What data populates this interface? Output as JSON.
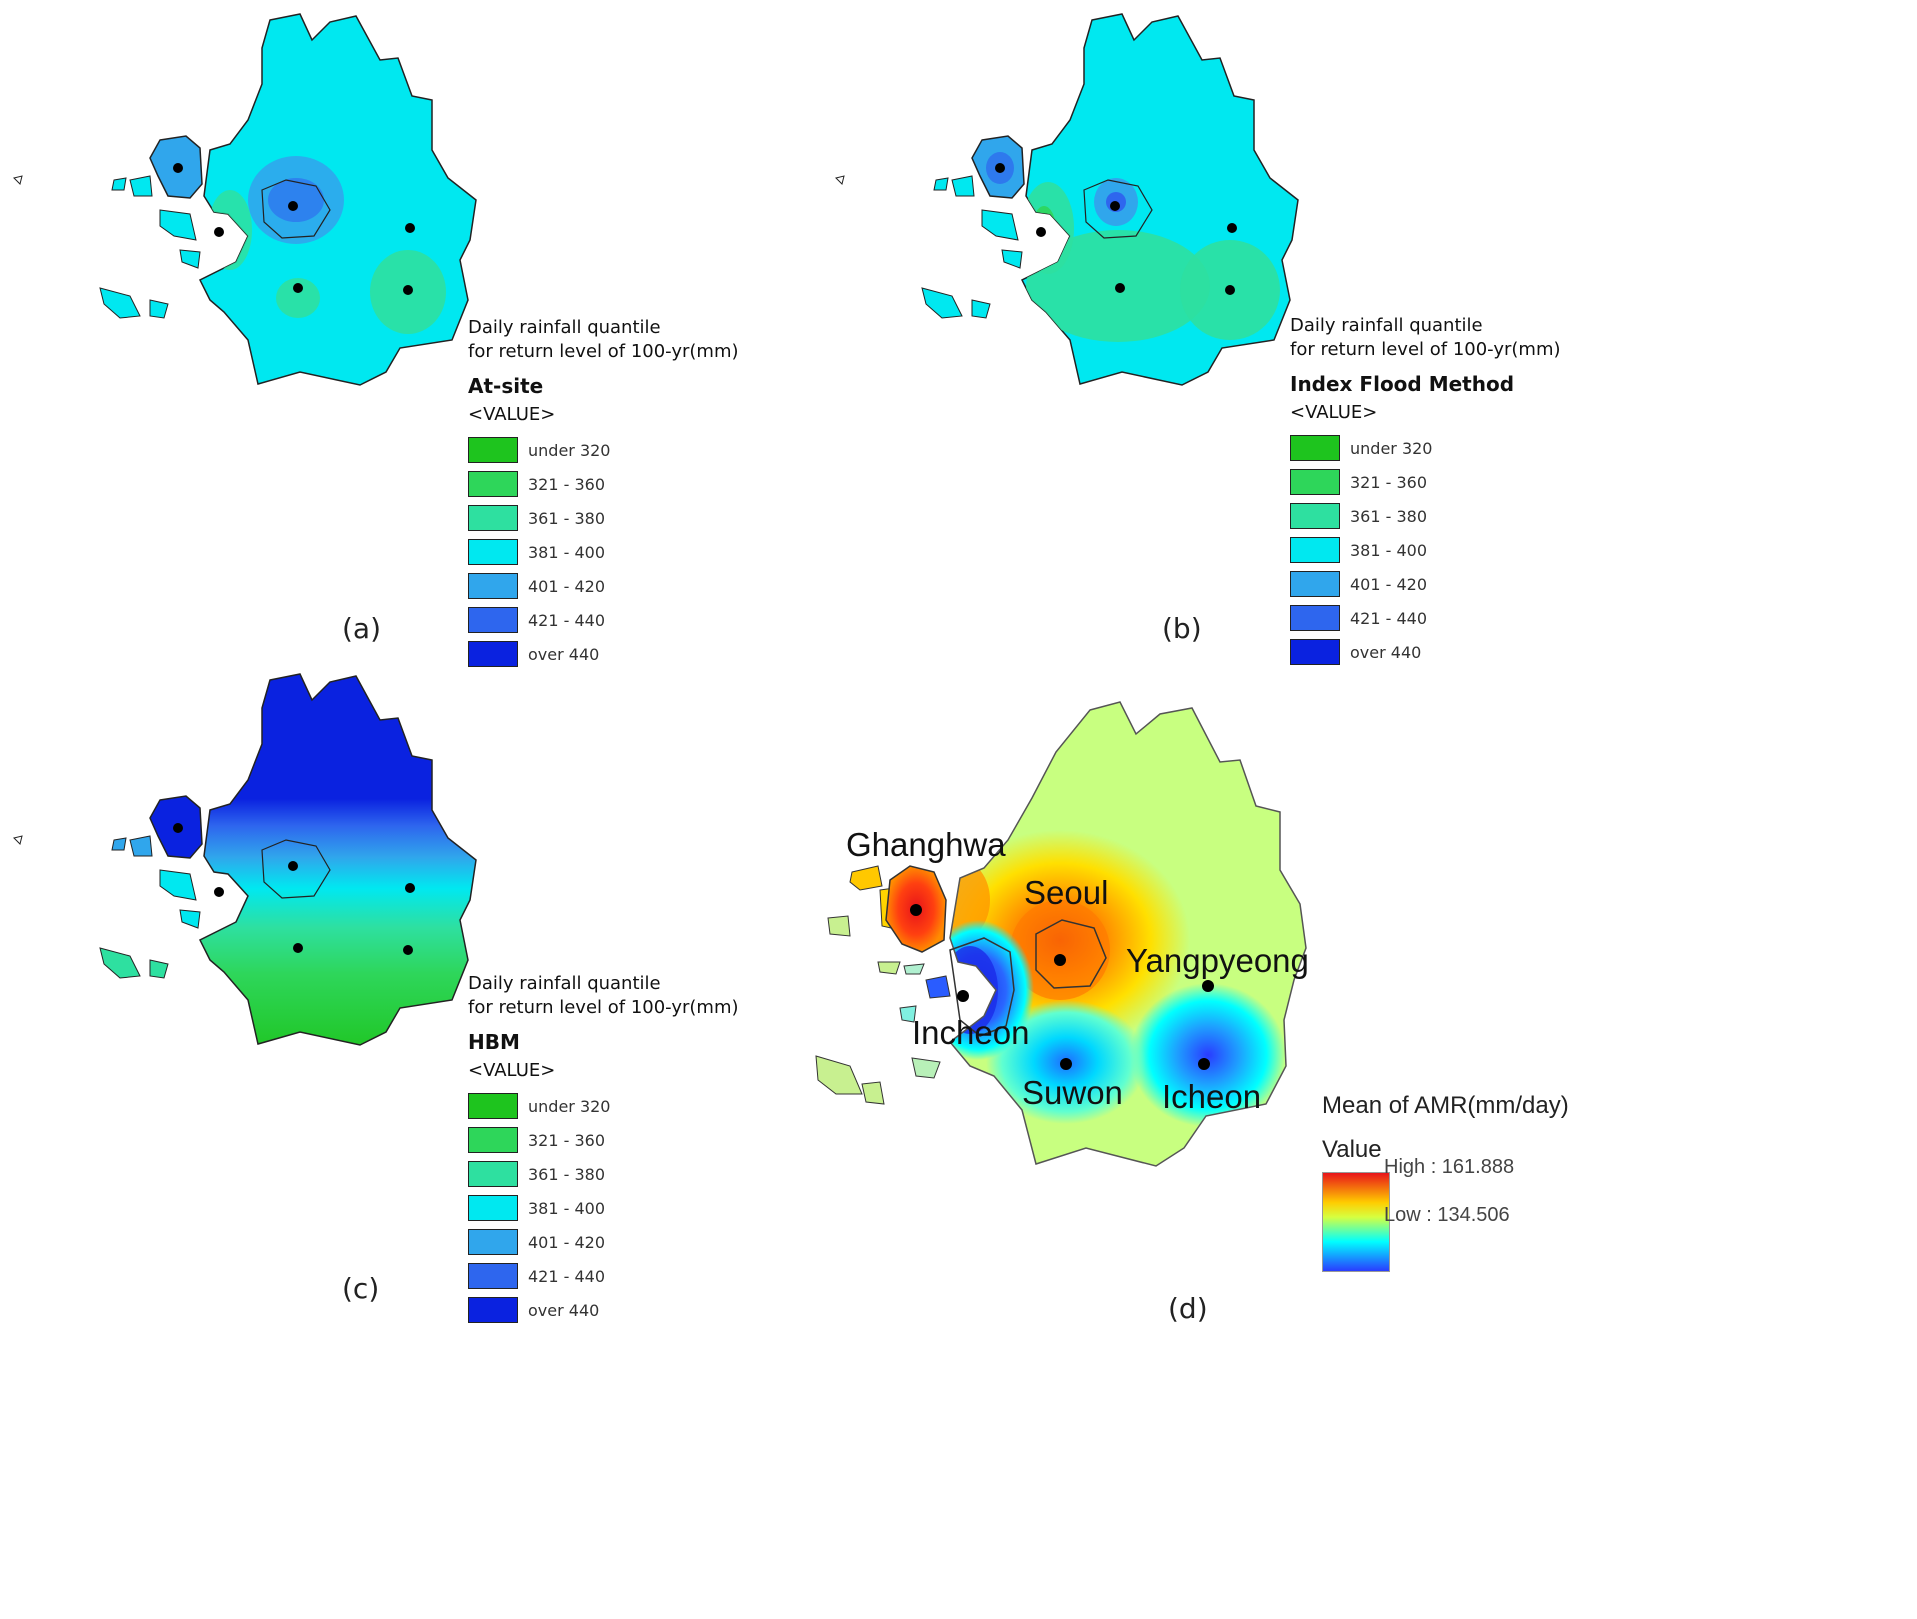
{
  "panels": {
    "a": {
      "caption": "(a)",
      "legend_title_1": "Daily rainfall quantile",
      "legend_title_2": "for return level of 100-yr(mm)",
      "method": "At-site",
      "value_label": "<VALUE>"
    },
    "b": {
      "caption": "(b)",
      "legend_title_1": "Daily rainfall quantile",
      "legend_title_2": "for return level of 100-yr(mm)",
      "method": "Index Flood Method",
      "value_label": "<VALUE>"
    },
    "c": {
      "caption": "(c)",
      "legend_title_1": "Daily rainfall quantile",
      "legend_title_2": "for return level of 100-yr(mm)",
      "method": "HBM",
      "value_label": "<VALUE>"
    },
    "d": {
      "caption": "(d)",
      "legend_title": "Mean of AMR(mm/day)",
      "value_label": "Value",
      "high_label": "High : 161.888",
      "low_label": "Low : 134.506",
      "cities": {
        "ghanghwa": "Ghanghwa",
        "seoul": "Seoul",
        "yangpyeong": "Yangpyeong",
        "incheon": "Incheon",
        "suwon": "Suwon",
        "icheon": "Icheon"
      }
    }
  },
  "legend_classes": [
    {
      "label": "under 320",
      "color": "#1ec41e"
    },
    {
      "label": "321 - 360",
      "color": "#2ed65a"
    },
    {
      "label": "361 - 380",
      "color": "#2ee0a0"
    },
    {
      "label": "381 - 400",
      "color": "#00e8f0"
    },
    {
      "label": "401 - 420",
      "color": "#30a6ec"
    },
    {
      "label": "421 - 440",
      "color": "#2e66ee"
    },
    {
      "label": "over 440",
      "color": "#0a22e0"
    }
  ]
}
